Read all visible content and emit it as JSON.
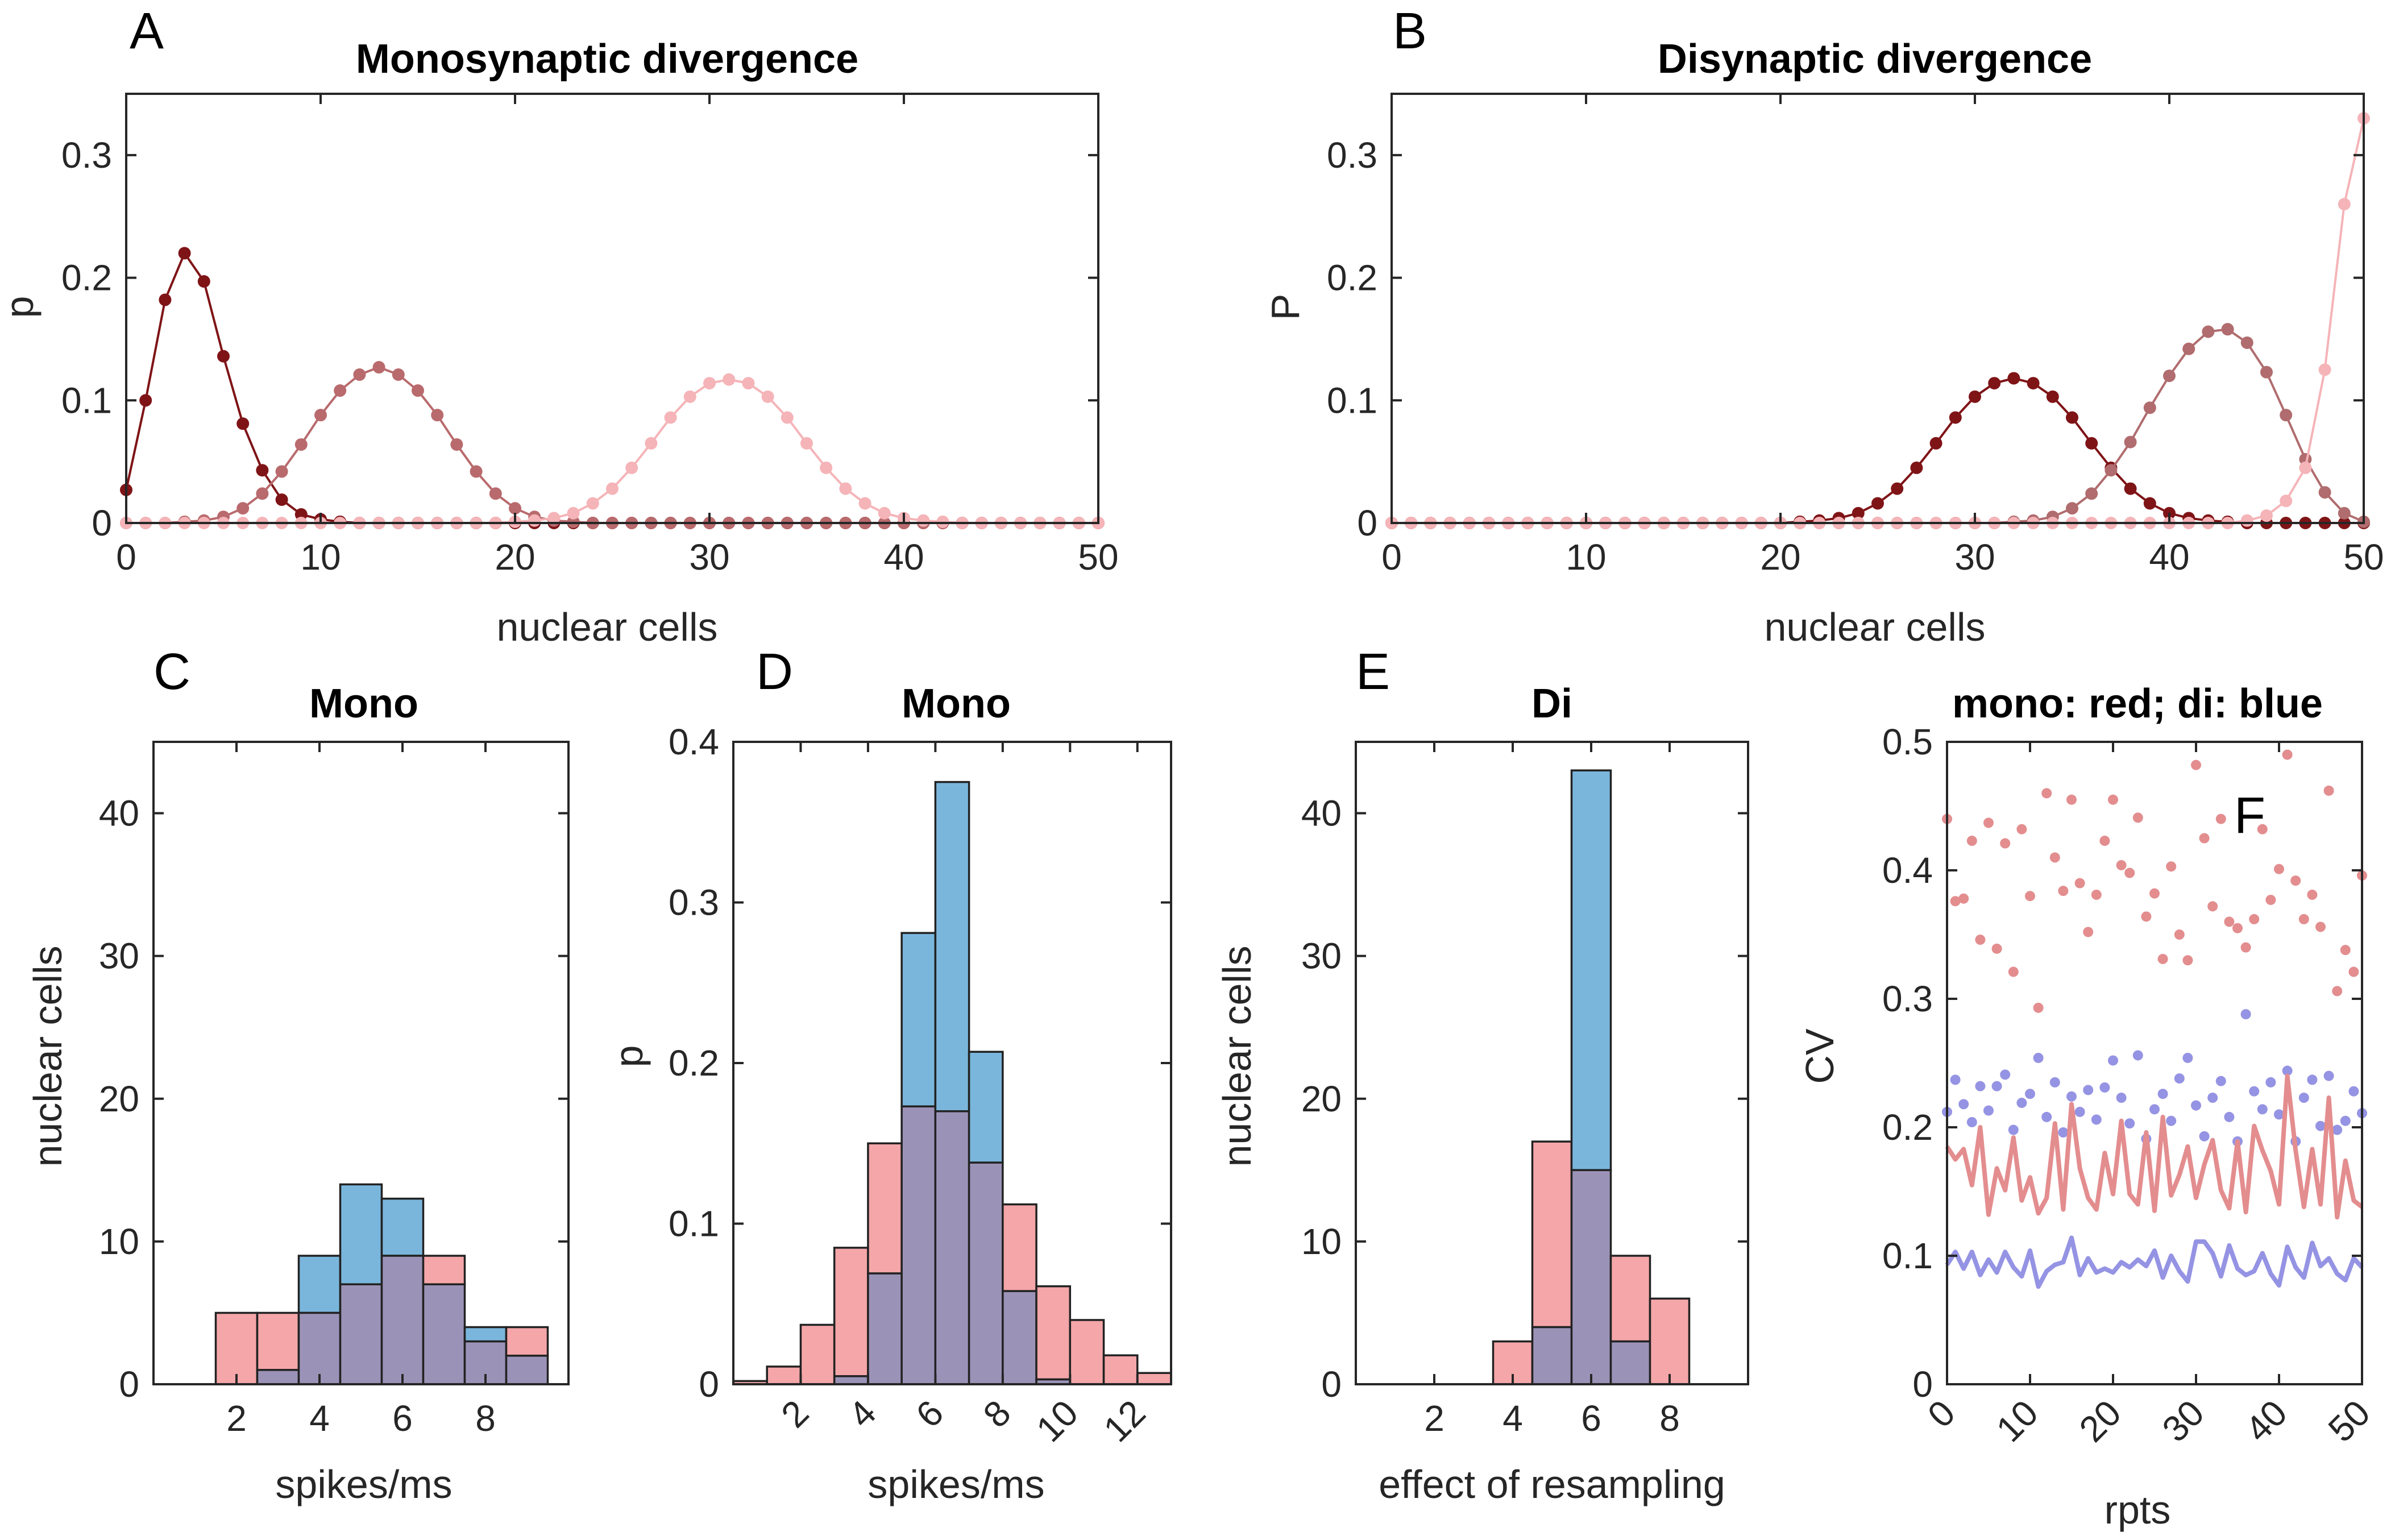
{
  "colors": {
    "mono_hist": "#f4a6a9",
    "di_hist": "#7ab6dc",
    "overlap": "#9b93b7",
    "mono_dot": "#e38d8f",
    "di_dot": "#9593e3",
    "dark_red": "#7f1417",
    "mid_red": "#b96a6d",
    "light_pink": "#f5b4b8",
    "mid_rose": "#b06c6e"
  },
  "chart_data": [
    {
      "id": "A",
      "panel_letter": "A",
      "type": "line",
      "title": "Monosynaptic divergence",
      "xlabel": "nuclear cells",
      "ylabel": "p",
      "xlim": [
        0,
        50
      ],
      "ylim": [
        0,
        0.35
      ],
      "xticks": [
        0,
        10,
        20,
        30,
        40,
        50
      ],
      "yticks": [
        0,
        0.1,
        0.2,
        0.3
      ],
      "ytick_labels": [
        "0",
        "0.1",
        "0.2",
        "0.3"
      ],
      "x_start": 0,
      "x_step": 1,
      "series": [
        {
          "name": "series-1",
          "color": "#7f1417",
          "values": [
            0.027,
            0.1,
            0.182,
            0.22,
            0.197,
            0.136,
            0.081,
            0.043,
            0.019,
            0.007,
            0.003,
            0.001,
            0,
            0,
            0,
            0,
            0,
            0,
            0,
            0,
            0,
            0,
            0,
            0,
            0,
            0,
            0,
            0,
            0,
            0,
            0,
            0,
            0,
            0,
            0,
            0,
            0,
            0,
            0,
            0,
            0,
            0,
            0,
            0,
            0,
            0,
            0,
            0,
            0,
            0,
            0
          ]
        },
        {
          "name": "series-2",
          "color": "#b96a6d",
          "values": [
            0,
            0,
            0,
            0.001,
            0.002,
            0.005,
            0.012,
            0.024,
            0.042,
            0.064,
            0.088,
            0.108,
            0.121,
            0.127,
            0.121,
            0.108,
            0.088,
            0.064,
            0.042,
            0.024,
            0.012,
            0.005,
            0.002,
            0.001,
            0,
            0,
            0,
            0,
            0,
            0,
            0,
            0,
            0,
            0,
            0,
            0,
            0,
            0,
            0,
            0,
            0,
            0,
            0,
            0,
            0,
            0,
            0,
            0,
            0,
            0,
            0
          ]
        },
        {
          "name": "series-3",
          "color": "#f5b4b8",
          "values": [
            0,
            0,
            0,
            0,
            0,
            0,
            0,
            0,
            0,
            0,
            0,
            0,
            0,
            0,
            0,
            0,
            0,
            0,
            0,
            0,
            0.001,
            0.002,
            0.004,
            0.008,
            0.016,
            0.028,
            0.045,
            0.065,
            0.086,
            0.103,
            0.114,
            0.117,
            0.114,
            0.103,
            0.086,
            0.065,
            0.045,
            0.028,
            0.016,
            0.008,
            0.004,
            0.002,
            0.001,
            0,
            0,
            0,
            0,
            0,
            0,
            0,
            0
          ]
        }
      ]
    },
    {
      "id": "B",
      "panel_letter": "B",
      "type": "line",
      "title": "Disynaptic divergence",
      "xlabel": "nuclear cells",
      "ylabel": "P",
      "xlim": [
        0,
        50
      ],
      "ylim": [
        0,
        0.35
      ],
      "xticks": [
        0,
        10,
        20,
        30,
        40,
        50
      ],
      "yticks": [
        0,
        0.1,
        0.2,
        0.3
      ],
      "ytick_labels": [
        "0",
        "0.1",
        "0.2",
        "0.3"
      ],
      "x_start": 0,
      "x_step": 1,
      "series": [
        {
          "name": "series-1",
          "color": "#7f1417",
          "values": [
            0,
            0,
            0,
            0,
            0,
            0,
            0,
            0,
            0,
            0,
            0,
            0,
            0,
            0,
            0,
            0,
            0,
            0,
            0,
            0,
            0,
            0.001,
            0.002,
            0.004,
            0.008,
            0.016,
            0.028,
            0.045,
            0.065,
            0.086,
            0.103,
            0.114,
            0.118,
            0.114,
            0.103,
            0.086,
            0.065,
            0.045,
            0.028,
            0.016,
            0.008,
            0.004,
            0.002,
            0.001,
            0,
            0,
            0,
            0,
            0,
            0,
            0
          ]
        },
        {
          "name": "series-2",
          "color": "#b06c6e",
          "values": [
            0,
            0,
            0,
            0,
            0,
            0,
            0,
            0,
            0,
            0,
            0,
            0,
            0,
            0,
            0,
            0,
            0,
            0,
            0,
            0,
            0,
            0,
            0,
            0,
            0,
            0,
            0,
            0,
            0,
            0,
            0,
            0,
            0.001,
            0.002,
            0.005,
            0.012,
            0.024,
            0.043,
            0.066,
            0.094,
            0.12,
            0.142,
            0.156,
            0.158,
            0.147,
            0.123,
            0.088,
            0.052,
            0.025,
            0.008,
            0.001
          ]
        },
        {
          "name": "series-3",
          "color": "#f5b4b8",
          "values": [
            0,
            0,
            0,
            0,
            0,
            0,
            0,
            0,
            0,
            0,
            0,
            0,
            0,
            0,
            0,
            0,
            0,
            0,
            0,
            0,
            0,
            0,
            0,
            0,
            0,
            0,
            0,
            0,
            0,
            0,
            0,
            0,
            0,
            0,
            0,
            0,
            0,
            0,
            0,
            0,
            0,
            0,
            0,
            0,
            0.002,
            0.006,
            0.018,
            0.045,
            0.125,
            0.26,
            0.33
          ]
        }
      ]
    },
    {
      "id": "C",
      "panel_letter": "C",
      "type": "bar",
      "title": "Mono",
      "xlabel": "spikes/ms",
      "ylabel": "nuclear cells",
      "xlim": [
        0,
        10
      ],
      "ylim": [
        0,
        45
      ],
      "xticks": [
        2,
        4,
        6,
        8
      ],
      "yticks": [
        0,
        10,
        20,
        30,
        40
      ],
      "ytick_labels": [
        "0",
        "10",
        "20",
        "30",
        "40"
      ],
      "bin_edges": [
        1.5,
        2.5,
        3.5,
        4.5,
        5.5,
        6.5,
        7.5,
        8.5,
        9.5
      ],
      "series": [
        {
          "name": "mono",
          "values": [
            5,
            5,
            5,
            7,
            9,
            9,
            3,
            4
          ]
        },
        {
          "name": "di",
          "values": [
            0,
            1,
            9,
            14,
            13,
            7,
            4,
            2
          ]
        }
      ]
    },
    {
      "id": "D",
      "panel_letter": "D",
      "type": "bar",
      "title": "Mono",
      "xlabel": "spikes/ms",
      "ylabel": "p",
      "xlim": [
        0,
        13
      ],
      "ylim": [
        0,
        0.4
      ],
      "xticks": [
        2,
        4,
        6,
        8,
        10,
        12
      ],
      "yticks": [
        0,
        0.1,
        0.2,
        0.3,
        0.4
      ],
      "ytick_labels": [
        "0",
        "0.1",
        "0.2",
        "0.3",
        "0.4"
      ],
      "bin_edges": [
        0,
        1,
        2,
        3,
        4,
        5,
        6,
        7,
        8,
        9,
        10,
        11,
        12,
        13
      ],
      "series": [
        {
          "name": "mono",
          "values": [
            0.002,
            0.011,
            0.037,
            0.085,
            0.15,
            0.173,
            0.17,
            0.138,
            0.112,
            0.061,
            0.04,
            0.018,
            0.007
          ]
        },
        {
          "name": "di",
          "values": [
            0,
            0,
            0,
            0.005,
            0.069,
            0.281,
            0.375,
            0.207,
            0.058,
            0.003,
            0,
            0,
            0
          ]
        }
      ]
    },
    {
      "id": "E",
      "panel_letter": "E",
      "type": "bar",
      "title": "Di",
      "xlabel": "effect of resampling",
      "ylabel": "nuclear cells",
      "xlim": [
        0,
        10
      ],
      "ylim": [
        0,
        45
      ],
      "xticks": [
        2,
        4,
        6,
        8
      ],
      "yticks": [
        0,
        10,
        20,
        30,
        40
      ],
      "ytick_labels": [
        "0",
        "10",
        "20",
        "30",
        "40"
      ],
      "bin_edges": [
        3.5,
        4.5,
        5.5,
        6.5,
        7.5,
        8.5
      ],
      "series": [
        {
          "name": "mono",
          "values": [
            3,
            17,
            15,
            9,
            6
          ]
        },
        {
          "name": "di",
          "values": [
            0,
            4,
            43,
            3,
            0
          ]
        }
      ]
    },
    {
      "id": "F",
      "panel_letter": "F",
      "type": "scatter",
      "title": "mono: red; di: blue",
      "xlabel": "rpts",
      "ylabel": "CV",
      "xlim": [
        0,
        50
      ],
      "ylim": [
        0,
        0.5
      ],
      "xticks": [
        0,
        10,
        20,
        30,
        40,
        50
      ],
      "yticks": [
        0,
        0.1,
        0.2,
        0.3,
        0.4,
        0.5
      ],
      "ytick_labels": [
        "0",
        "0.1",
        "0.2",
        "0.3",
        "0.4",
        "0.5"
      ],
      "x_start": 0,
      "x_step": 1,
      "series": [
        {
          "name": "mono dots",
          "kind": "dots",
          "color": "#e38d8f",
          "values": [
            0.44,
            0.376,
            0.378,
            0.423,
            0.346,
            0.437,
            0.339,
            0.421,
            0.321,
            0.432,
            0.38,
            0.293,
            0.46,
            0.41,
            0.384,
            0.455,
            0.39,
            0.352,
            0.381,
            0.423,
            0.455,
            0.404,
            0.398,
            0.441,
            0.364,
            0.382,
            0.331,
            0.403,
            0.35,
            0.33,
            0.482,
            0.425,
            0.372,
            0.44,
            0.36,
            0.355,
            0.34,
            0.362,
            0.432,
            0.377,
            0.401,
            0.49,
            0.392,
            0.362,
            0.381,
            0.356,
            0.462,
            0.306,
            0.338,
            0.321,
            0.396
          ]
        },
        {
          "name": "di dots",
          "kind": "dots",
          "color": "#9593e3",
          "values": [
            0.212,
            0.237,
            0.218,
            0.204,
            0.232,
            0.213,
            0.232,
            0.241,
            0.198,
            0.219,
            0.226,
            0.254,
            0.208,
            0.235,
            0.196,
            0.224,
            0.212,
            0.229,
            0.206,
            0.231,
            0.252,
            0.223,
            0.203,
            0.256,
            0.191,
            0.214,
            0.226,
            0.205,
            0.238,
            0.254,
            0.217,
            0.193,
            0.223,
            0.236,
            0.208,
            0.189,
            0.288,
            0.228,
            0.214,
            0.235,
            0.21,
            0.244,
            0.189,
            0.223,
            0.237,
            0.201,
            0.24,
            0.198,
            0.205,
            0.228,
            0.211
          ]
        },
        {
          "name": "mono line",
          "kind": "line",
          "color": "#e38d8f",
          "values": [
            0.185,
            0.175,
            0.183,
            0.155,
            0.2,
            0.132,
            0.168,
            0.151,
            0.192,
            0.143,
            0.161,
            0.133,
            0.145,
            0.203,
            0.136,
            0.218,
            0.168,
            0.145,
            0.136,
            0.18,
            0.148,
            0.205,
            0.148,
            0.14,
            0.196,
            0.135,
            0.208,
            0.147,
            0.163,
            0.185,
            0.145,
            0.171,
            0.19,
            0.151,
            0.137,
            0.189,
            0.134,
            0.201,
            0.182,
            0.166,
            0.14,
            0.24,
            0.182,
            0.138,
            0.183,
            0.14,
            0.223,
            0.13,
            0.174,
            0.143,
            0.138
          ]
        },
        {
          "name": "di line",
          "kind": "line",
          "color": "#9593e3",
          "values": [
            0.093,
            0.103,
            0.09,
            0.103,
            0.085,
            0.097,
            0.087,
            0.103,
            0.091,
            0.084,
            0.104,
            0.076,
            0.088,
            0.093,
            0.095,
            0.114,
            0.085,
            0.098,
            0.087,
            0.09,
            0.087,
            0.095,
            0.091,
            0.097,
            0.092,
            0.104,
            0.083,
            0.1,
            0.088,
            0.08,
            0.111,
            0.111,
            0.102,
            0.084,
            0.108,
            0.09,
            0.085,
            0.088,
            0.102,
            0.086,
            0.077,
            0.107,
            0.091,
            0.083,
            0.11,
            0.092,
            0.098,
            0.086,
            0.081,
            0.098,
            0.091
          ]
        }
      ]
    }
  ]
}
